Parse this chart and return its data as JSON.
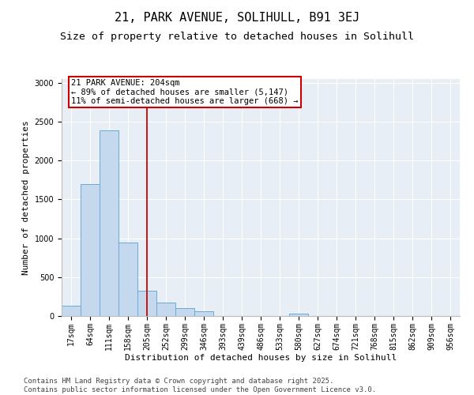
{
  "title1": "21, PARK AVENUE, SOLIHULL, B91 3EJ",
  "title2": "Size of property relative to detached houses in Solihull",
  "xlabel": "Distribution of detached houses by size in Solihull",
  "ylabel": "Number of detached properties",
  "categories": [
    "17sqm",
    "64sqm",
    "111sqm",
    "158sqm",
    "205sqm",
    "252sqm",
    "299sqm",
    "346sqm",
    "393sqm",
    "439sqm",
    "486sqm",
    "533sqm",
    "580sqm",
    "627sqm",
    "674sqm",
    "721sqm",
    "768sqm",
    "815sqm",
    "862sqm",
    "909sqm",
    "956sqm"
  ],
  "values": [
    130,
    1700,
    2390,
    950,
    330,
    175,
    105,
    65,
    0,
    0,
    0,
    0,
    30,
    0,
    0,
    0,
    0,
    0,
    0,
    0,
    0
  ],
  "bar_color": "#c5d9ee",
  "bar_edge_color": "#6aaad4",
  "vline_x": 4,
  "vline_color": "#cc0000",
  "annotation_text": "21 PARK AVENUE: 204sqm\n← 89% of detached houses are smaller (5,147)\n11% of semi-detached houses are larger (668) →",
  "annotation_box_color": "#cc0000",
  "ylim": [
    0,
    3050
  ],
  "yticks": [
    0,
    500,
    1000,
    1500,
    2000,
    2500,
    3000
  ],
  "background_color": "#e8eef5",
  "footer_line1": "Contains HM Land Registry data © Crown copyright and database right 2025.",
  "footer_line2": "Contains public sector information licensed under the Open Government Licence v3.0.",
  "title1_fontsize": 11,
  "title2_fontsize": 9.5,
  "axis_label_fontsize": 8,
  "tick_fontsize": 7,
  "annotation_fontsize": 7.5,
  "footer_fontsize": 6.5
}
